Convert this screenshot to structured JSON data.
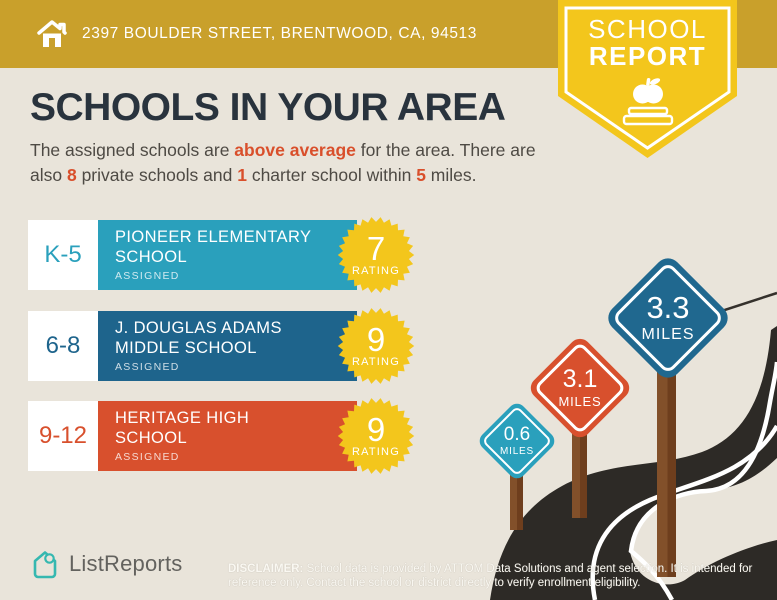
{
  "header": {
    "address": "2397 BOULDER STREET, BRENTWOOD, CA, 94513"
  },
  "badge": {
    "line1": "SCHOOL",
    "line2": "REPORT",
    "icon": "apple-on-book-icon"
  },
  "title": "SCHOOLS IN YOUR AREA",
  "intro": {
    "seg1": "The assigned schools are ",
    "highlight1": "above average",
    "seg2": " for the area. There are also ",
    "num_private": "8",
    "seg3": " private schools and ",
    "num_charter": "1",
    "seg4": " charter school within ",
    "num_miles": "5",
    "seg5": " miles."
  },
  "schools": [
    {
      "grades": "K-5",
      "name_line1": "PIONEER ELEMENTARY",
      "name_line2": "SCHOOL",
      "status": "ASSIGNED",
      "rating": "7",
      "rating_label": "RATING",
      "color": "#2aa0bc"
    },
    {
      "grades": "6-8",
      "name_line1": "J. DOUGLAS ADAMS",
      "name_line2": "MIDDLE SCHOOL",
      "status": "ASSIGNED",
      "rating": "9",
      "rating_label": "RATING",
      "color": "#1e648c"
    },
    {
      "grades": "9-12",
      "name_line1": "HERITAGE HIGH",
      "name_line2": "SCHOOL",
      "status": "ASSIGNED",
      "rating": "9",
      "rating_label": "RATING",
      "color": "#d8502d"
    }
  ],
  "signs": [
    {
      "distance": "0.6",
      "unit": "MILES",
      "color": "#2aa0bc"
    },
    {
      "distance": "3.1",
      "unit": "MILES",
      "color": "#d8502d"
    },
    {
      "distance": "3.3",
      "unit": "MILES",
      "color": "#20688f"
    }
  ],
  "footer": {
    "brand": "ListReports",
    "disclaimer_label": "DISCLAIMER:",
    "disclaimer_text": " School data is provided by ATTOM Data Solutions and agent selection. It is intended for reference only. Contact the school or district directly to verify enrollment eligibility."
  },
  "palette": {
    "bg": "#e9e4da",
    "gold": "#c9a02b",
    "yellow": "#f3c61c",
    "teal": "#2aa0bc",
    "blue": "#1e648c",
    "signblue": "#20688f",
    "orange": "#d8502d",
    "accent": "#d94f2b",
    "ink": "#29333d",
    "body": "#4e4a44",
    "road": "#2d2a26",
    "post": "#7a4523",
    "brandteal": "#35b8b0",
    "gray": "#63625e"
  }
}
